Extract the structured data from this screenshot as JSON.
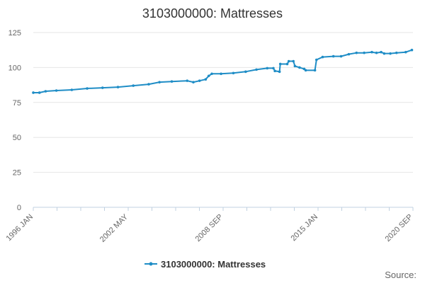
{
  "chart_data": {
    "type": "line",
    "title": "3103000000: Mattresses",
    "xlabel": "",
    "ylabel": "",
    "ylim": [
      0,
      125
    ],
    "y_ticks": [
      "0",
      "25",
      "50",
      "75",
      "100",
      "125"
    ],
    "x_tick_labels": [
      "1996 JAN",
      "2002 MAY",
      "2008 SEP",
      "2015 JAN",
      "2020 SEP"
    ],
    "x_range": [
      1996.0,
      2020.67
    ],
    "source_label": "Source:",
    "series": [
      {
        "name": "3103000000: Mattresses",
        "color": "#1f8dc6",
        "points": [
          [
            1996.0,
            82
          ],
          [
            1996.4,
            82
          ],
          [
            1996.8,
            83
          ],
          [
            1997.5,
            83.5
          ],
          [
            1998.5,
            84
          ],
          [
            1999.5,
            85
          ],
          [
            2000.5,
            85.5
          ],
          [
            2001.5,
            86
          ],
          [
            2002.5,
            87
          ],
          [
            2003.5,
            88
          ],
          [
            2004.2,
            89.5
          ],
          [
            2005.0,
            90
          ],
          [
            2006.0,
            90.5
          ],
          [
            2006.4,
            89.5
          ],
          [
            2006.8,
            90.5
          ],
          [
            2007.2,
            91.5
          ],
          [
            2007.4,
            94
          ],
          [
            2007.6,
            95.5
          ],
          [
            2008.2,
            95.5
          ],
          [
            2009.0,
            96
          ],
          [
            2009.8,
            97
          ],
          [
            2010.5,
            98.5
          ],
          [
            2011.2,
            99.5
          ],
          [
            2011.6,
            99.5
          ],
          [
            2011.7,
            97.5
          ],
          [
            2012.0,
            97
          ],
          [
            2012.05,
            102.5
          ],
          [
            2012.5,
            102.5
          ],
          [
            2012.6,
            104.5
          ],
          [
            2012.9,
            104.5
          ],
          [
            2013.0,
            101
          ],
          [
            2013.3,
            100
          ],
          [
            2013.6,
            99
          ],
          [
            2013.7,
            98
          ],
          [
            2014.3,
            98
          ],
          [
            2014.4,
            105.5
          ],
          [
            2014.8,
            107.5
          ],
          [
            2015.5,
            108
          ],
          [
            2016.0,
            108
          ],
          [
            2016.5,
            109.5
          ],
          [
            2017.0,
            110.5
          ],
          [
            2017.5,
            110.5
          ],
          [
            2018.0,
            111
          ],
          [
            2018.3,
            110.5
          ],
          [
            2018.6,
            111
          ],
          [
            2018.8,
            110
          ],
          [
            2019.2,
            110
          ],
          [
            2019.6,
            110.5
          ],
          [
            2020.2,
            111
          ],
          [
            2020.6,
            112.5
          ]
        ]
      }
    ],
    "legend_position": "bottom-center"
  }
}
